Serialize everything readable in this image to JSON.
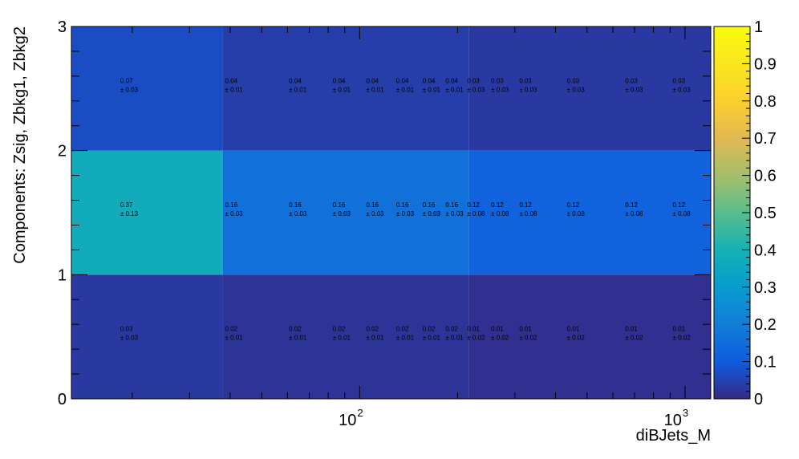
{
  "chart_data": {
    "type": "heatmap",
    "title": "",
    "xlabel": "diBJets_M",
    "ylabel": "Components: Zsig, Zbkg1, Zbkg2",
    "x_scale": "log",
    "x_range": [
      13,
      1200
    ],
    "x_tick_labels": [
      {
        "value": 100,
        "base": "10",
        "exp": "2"
      },
      {
        "value": 1000,
        "base": "10",
        "exp": "3"
      }
    ],
    "y_range": [
      0,
      3
    ],
    "y_tick_labels": [
      "0",
      "1",
      "2",
      "3"
    ],
    "colorbar": {
      "range": [
        0,
        1
      ],
      "tick_labels": [
        "0",
        "0.1",
        "0.2",
        "0.3",
        "0.4",
        "0.5",
        "0.6",
        "0.7",
        "0.8",
        "0.9",
        "1"
      ]
    },
    "x_bin_edges": [
      13,
      38,
      217,
      1200
    ],
    "cell_values": [
      [
        0.03,
        0.02,
        0.01
      ],
      [
        0.37,
        0.16,
        0.12
      ],
      [
        0.07,
        0.04,
        0.03
      ]
    ],
    "label_columns": [
      {
        "x": 20,
        "labels": [
          {
            "v": "0.03",
            "e": "± 0.03"
          },
          {
            "v": "0.37",
            "e": "± 0.13"
          },
          {
            "v": "0.07",
            "e": "± 0.03"
          }
        ]
      },
      {
        "x": 42,
        "labels": [
          {
            "v": "0.02",
            "e": "± 0.01"
          },
          {
            "v": "0.16",
            "e": "± 0.03"
          },
          {
            "v": "0.04",
            "e": "± 0.01"
          }
        ]
      },
      {
        "x": 66,
        "labels": [
          {
            "v": "0.02",
            "e": "± 0.01"
          },
          {
            "v": "0.16",
            "e": "± 0.03"
          },
          {
            "v": "0.04",
            "e": "± 0.01"
          }
        ]
      },
      {
        "x": 90,
        "labels": [
          {
            "v": "0.02",
            "e": "± 0.01"
          },
          {
            "v": "0.16",
            "e": "± 0.03"
          },
          {
            "v": "0.04",
            "e": "± 0.01"
          }
        ]
      },
      {
        "x": 114,
        "labels": [
          {
            "v": "0.02",
            "e": "± 0.01"
          },
          {
            "v": "0.16",
            "e": "± 0.03"
          },
          {
            "v": "0.04",
            "e": "± 0.01"
          }
        ]
      },
      {
        "x": 141,
        "labels": [
          {
            "v": "0.02",
            "e": "± 0.01"
          },
          {
            "v": "0.16",
            "e": "± 0.03"
          },
          {
            "v": "0.04",
            "e": "± 0.01"
          }
        ]
      },
      {
        "x": 170,
        "labels": [
          {
            "v": "0.02",
            "e": "± 0.01"
          },
          {
            "v": "0.16",
            "e": "± 0.03"
          },
          {
            "v": "0.04",
            "e": "± 0.01"
          }
        ]
      },
      {
        "x": 200,
        "labels": [
          {
            "v": "0.02",
            "e": "± 0.01"
          },
          {
            "v": "0.16",
            "e": "± 0.03"
          },
          {
            "v": "0.04",
            "e": "± 0.01"
          }
        ]
      },
      {
        "x": 233,
        "labels": [
          {
            "v": "0.01",
            "e": "± 0.02"
          },
          {
            "v": "0.12",
            "e": "± 0.08"
          },
          {
            "v": "0.03",
            "e": "± 0.03"
          }
        ]
      },
      {
        "x": 276,
        "labels": [
          {
            "v": "0.01",
            "e": "± 0.02"
          },
          {
            "v": "0.12",
            "e": "± 0.08"
          },
          {
            "v": "0.03",
            "e": "± 0.03"
          }
        ]
      },
      {
        "x": 337,
        "labels": [
          {
            "v": "0.01",
            "e": "± 0.02"
          },
          {
            "v": "0.12",
            "e": "± 0.08"
          },
          {
            "v": "0.03",
            "e": "± 0.03"
          }
        ]
      },
      {
        "x": 472,
        "labels": [
          {
            "v": "0.01",
            "e": "± 0.02"
          },
          {
            "v": "0.12",
            "e": "± 0.08"
          },
          {
            "v": "0.03",
            "e": "± 0.03"
          }
        ]
      },
      {
        "x": 713,
        "labels": [
          {
            "v": "0.01",
            "e": "± 0.02"
          },
          {
            "v": "0.12",
            "e": "± 0.08"
          },
          {
            "v": "0.03",
            "e": "± 0.03"
          }
        ]
      },
      {
        "x": 998,
        "labels": [
          {
            "v": "0.01",
            "e": "± 0.02"
          },
          {
            "v": "0.12",
            "e": "± 0.08"
          },
          {
            "v": "0.03",
            "e": "± 0.03"
          }
        ]
      }
    ],
    "colormap": "parula",
    "grid": false,
    "legend": "none"
  }
}
